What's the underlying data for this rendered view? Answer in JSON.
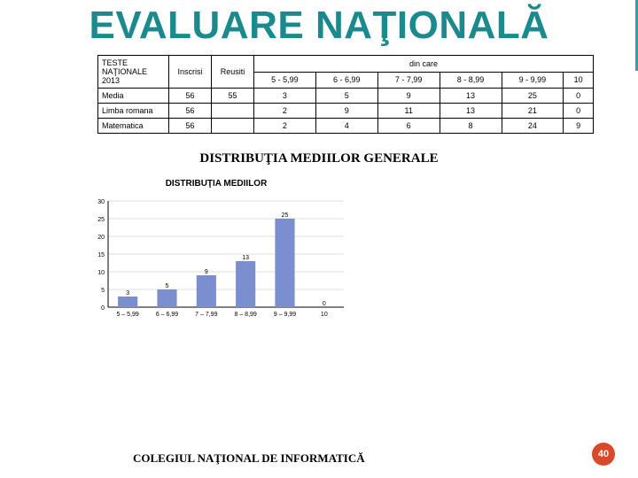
{
  "title": "EVALUARE NAŢIONALĂ",
  "title_color": "#1a8a8f",
  "table": {
    "col_headers": {
      "teste": "TESTE NAŢIONALE 2013",
      "inscrisi": "Inscrisi",
      "reusiti": "Reusiti",
      "dincare": "din care"
    },
    "range_headers": [
      "5 - 5,99",
      "6 - 6,99",
      "7 - 7,99",
      "8 - 8,99",
      "9 - 9,99",
      "10"
    ],
    "rows": [
      {
        "label": "Media",
        "inscrisi": 56,
        "reusiti": 55,
        "ranges": [
          3,
          5,
          9,
          13,
          25,
          0
        ]
      },
      {
        "label": "Limba romana",
        "inscrisi": 56,
        "reusiti": "",
        "ranges": [
          2,
          9,
          11,
          13,
          21,
          0
        ]
      },
      {
        "label": "Matematica",
        "inscrisi": 56,
        "reusiti": "",
        "ranges": [
          2,
          4,
          6,
          8,
          24,
          9
        ]
      }
    ]
  },
  "subtitle": "DISTRIBUŢIA MEDIILOR GENERALE",
  "chart": {
    "type": "bar",
    "title": "DISTRIBUŢIA MEDIILOR",
    "categories": [
      "5 – 5,99",
      "6 – 6,99",
      "7 – 7,99",
      "8 – 8,99",
      "9 – 9,99",
      "10"
    ],
    "values": [
      3,
      5,
      9,
      13,
      25,
      0
    ],
    "bar_color": "#7b8ecf",
    "axis_color": "#000000",
    "gridline_color": "#bfbfbf",
    "label_font_size": 7,
    "ylim": [
      0,
      30
    ],
    "ytick_step": 5,
    "background_color": "#ffffff",
    "bar_width": 0.5,
    "label_fontsize": 7,
    "title_fontsize": 10,
    "text_color": "#000000"
  },
  "footer": "COLEGIUL NAŢIONAL DE INFORMATICĂ",
  "page_number": "40",
  "badge_color": "#d94a2a",
  "accent_color": "#2aa3a8"
}
